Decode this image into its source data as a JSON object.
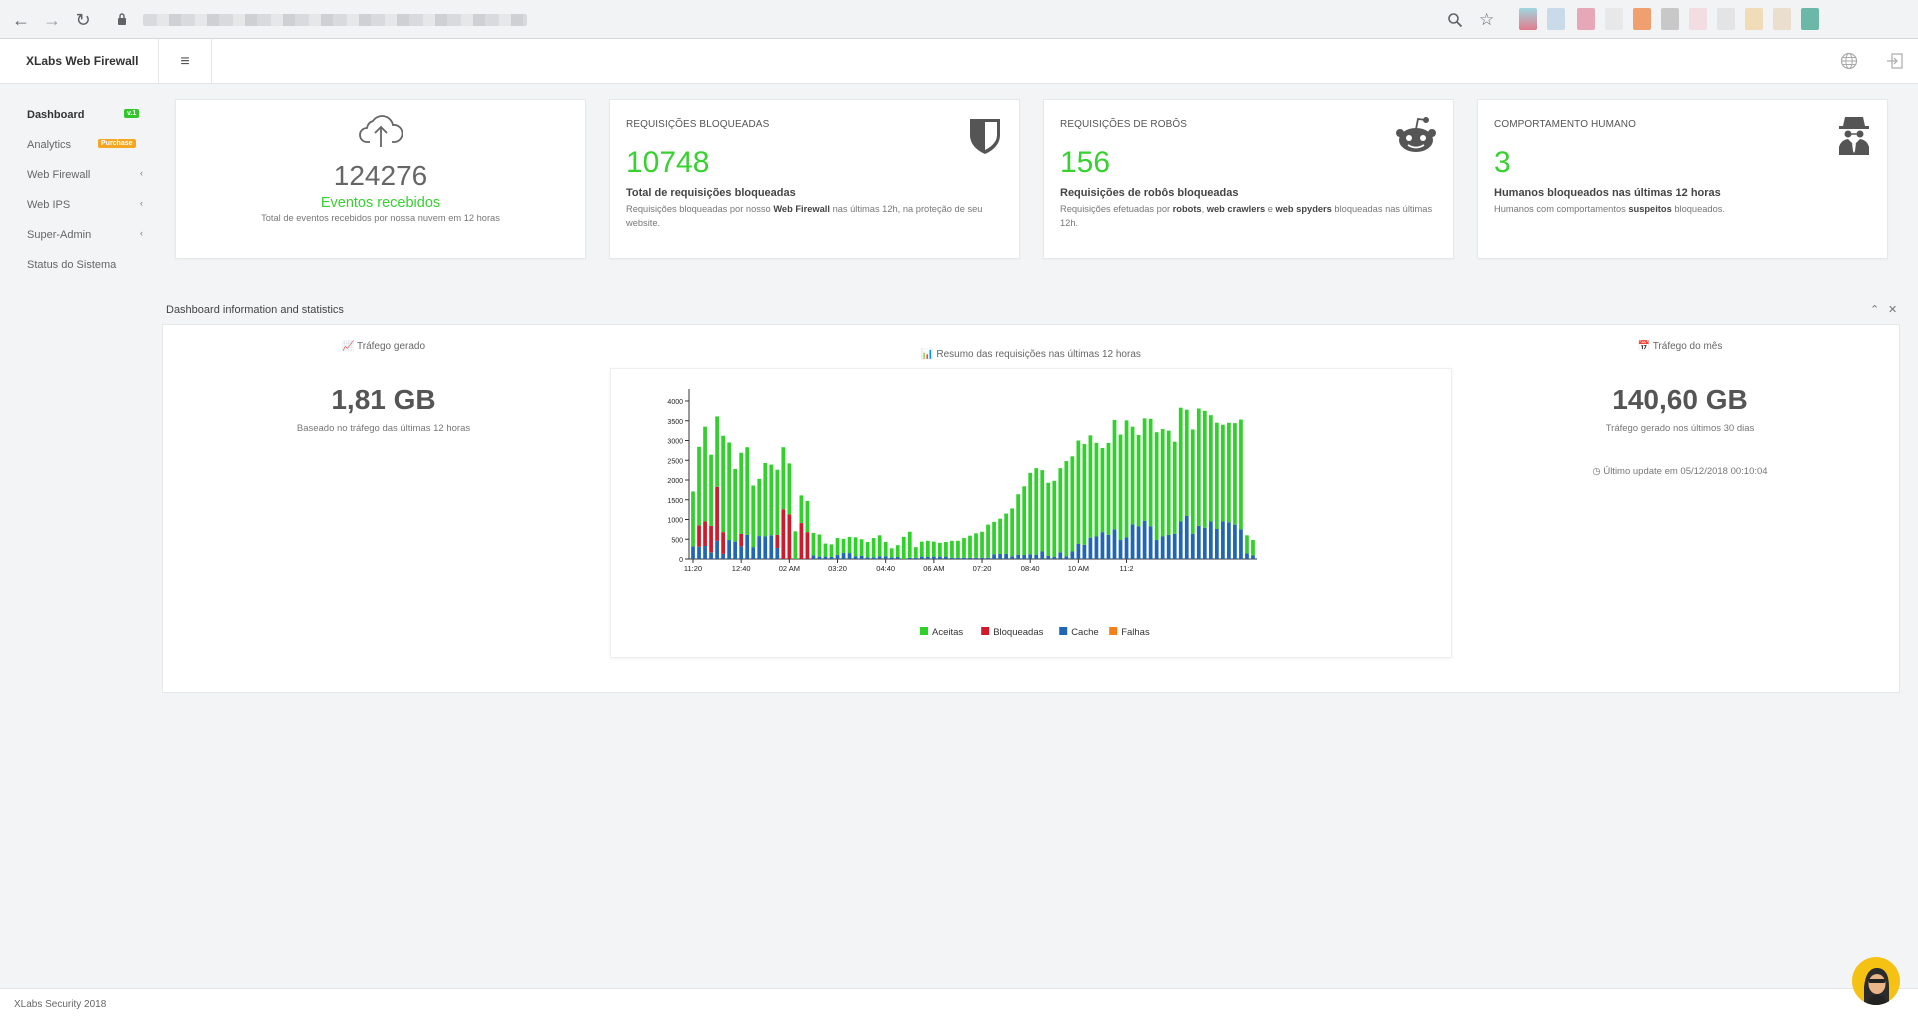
{
  "app": {
    "title": "XLabs Web Firewall"
  },
  "sidebar": {
    "items": [
      {
        "label": "Dashboard",
        "badge": "v.1",
        "badge_color": "#2fc72a",
        "active": true
      },
      {
        "label": "Analytics",
        "badge": "Purchase",
        "badge_color": "#f5a623"
      },
      {
        "label": "Web Firewall",
        "chevron": true
      },
      {
        "label": "Web IPS",
        "chevron": true
      },
      {
        "label": "Super-Admin",
        "chevron": true
      },
      {
        "label": "Status do Sistema"
      }
    ]
  },
  "cards": [
    {
      "value": "124276",
      "title": "Eventos recebidos",
      "desc": "Total de eventos recebidos por nossa nuvem em 12 horas",
      "icon": "cloud-upload-icon"
    },
    {
      "label": "REQUISIÇÕES BLOQUEADAS",
      "value": "10748",
      "subtitle": "Total de requisições bloqueadas",
      "desc_a": "Requisições bloqueadas por nosso ",
      "desc_b": "Web Firewall",
      "desc_c": " nas últimas 12h, na proteção de seu website.",
      "icon": "shield-icon"
    },
    {
      "label": "REQUISIÇÕES DE ROBÔS",
      "value": "156",
      "subtitle": "Requisições de robôs bloqueadas",
      "desc_a": "Requisições efetuadas por ",
      "desc_b": "robots",
      "desc_c": ", ",
      "desc_d": "web crawlers",
      "desc_e": " e ",
      "desc_f": "web spyders",
      "desc_g": " bloqueadas nas últimas 12h.",
      "icon": "robot-icon"
    },
    {
      "label": "COMPORTAMENTO HUMANO",
      "value": "3",
      "subtitle": "Humanos bloqueados nas últimas 12 horas",
      "desc_a": "Humanos com comportamentos ",
      "desc_b": "suspeitos",
      "desc_c": " bloqueados.",
      "icon": "spy-icon"
    }
  ],
  "stats_panel": {
    "title": "Dashboard information and statistics",
    "traffic": {
      "heading": "Tráfego gerado",
      "value": "1,81 GB",
      "sub": "Baseado no tráfego das últimas 12 horas"
    },
    "chart_heading": "Resumo das requisições nas últimas 12 horas",
    "month": {
      "heading": "Tráfego do mês",
      "value": "140,60 GB",
      "sub": "Tráfego gerado nos últimos 30 dias",
      "update": "Último update em 05/12/2018 00:10:04"
    }
  },
  "footer": {
    "text": "XLabs Security 2018"
  },
  "colors": {
    "green": "#37d130",
    "red": "#d0192b",
    "blue": "#1f67b4",
    "orange": "#f57f17"
  },
  "chart_data": {
    "type": "bar",
    "stacked": true,
    "ylim": [
      0,
      4000
    ],
    "yticks": [
      0,
      500,
      1000,
      1500,
      2000,
      2500,
      3000,
      3500,
      4000
    ],
    "xtick_labels": [
      "11:20",
      "12:40",
      "02 AM",
      "03:20",
      "04:40",
      "06 AM",
      "07:20",
      "08:40",
      "10 AM",
      "11:2"
    ],
    "xtick_index": [
      0,
      8,
      16,
      24,
      32,
      40,
      48,
      56,
      64,
      72
    ],
    "legend": [
      "Aceitas",
      "Bloqueadas",
      "Cache",
      "Falhas"
    ],
    "series": [
      {
        "name": "Aceitas",
        "color": "#2fd12a",
        "values": [
          1390,
          1990,
          2400,
          1800,
          1780,
          2440,
          2470,
          1840,
          2050,
          2220,
          1560,
          1450,
          1860,
          1790,
          1650,
          1570,
          1290,
          700,
          700,
          790,
          570,
          560,
          330,
          320,
          430,
          360,
          410,
          480,
          420,
          390,
          490,
          530,
          360,
          230,
          300,
          560,
          660,
          270,
          380,
          410,
          380,
          350,
          370,
          430,
          430,
          500,
          560,
          620,
          660,
          840,
          820,
          890,
          1020,
          1210,
          1530,
          1740,
          2060,
          2190,
          2060,
          1850,
          1930,
          2130,
          2410,
          2410,
          2620,
          2550,
          2590,
          2370,
          2130,
          2330,
          2770,
          2670,
          2960,
          2470,
          2310,
          2590,
          2720,
          2730,
          2720,
          2640,
          2330,
          2880,
          2690,
          2640,
          2970,
          2960,
          2690,
          2690,
          2450,
          2520,
          2570,
          2780,
          460,
          390
        ]
      },
      {
        "name": "Bloqueadas",
        "color": "#d0192b",
        "values": [
          0,
          540,
          620,
          670,
          1370,
          550,
          0,
          0,
          320,
          0,
          0,
          0,
          0,
          0,
          330,
          1260,
          1130,
          0,
          910,
          680,
          0,
          0,
          0,
          0,
          0,
          0,
          0,
          0,
          0,
          0,
          0,
          0,
          0,
          0,
          0,
          0,
          0,
          0,
          0,
          0,
          0,
          0,
          0,
          0,
          0,
          0,
          0,
          0,
          0,
          0,
          0,
          0,
          0,
          0,
          0,
          0,
          0,
          0,
          0,
          0,
          0,
          0,
          0,
          0,
          0,
          0,
          0,
          0,
          0,
          0,
          0,
          0,
          0,
          0,
          0,
          0,
          0,
          0,
          0,
          0,
          0,
          0,
          0,
          0,
          0,
          0,
          0,
          0,
          0,
          0,
          0,
          0,
          0,
          0
        ]
      },
      {
        "name": "Cache",
        "color": "#1f67b4",
        "values": [
          320,
          310,
          330,
          170,
          460,
          130,
          480,
          440,
          320,
          610,
          300,
          580,
          570,
          600,
          280,
          0,
          0,
          0,
          0,
          0,
          90,
          60,
          60,
          50,
          100,
          150,
          150,
          70,
          80,
          40,
          40,
          70,
          70,
          40,
          50,
          0,
          30,
          30,
          60,
          50,
          60,
          60,
          60,
          30,
          30,
          30,
          30,
          30,
          30,
          30,
          120,
          130,
          130,
          70,
          110,
          100,
          120,
          110,
          190,
          80,
          50,
          170,
          70,
          190,
          380,
          360,
          540,
          570,
          680,
          610,
          750,
          480,
          550,
          880,
          830,
          970,
          830,
          480,
          570,
          610,
          640,
          950,
          1090,
          640,
          840,
          790,
          950,
          760,
          950,
          930,
          870,
          750,
          140,
          90
        ]
      },
      {
        "name": "Falhas",
        "color": "#f57f17",
        "values": [
          0,
          0,
          0,
          0,
          0,
          0,
          0,
          0,
          0,
          0,
          0,
          0,
          0,
          0,
          0,
          0,
          0,
          0,
          0,
          0,
          0,
          0,
          0,
          0,
          0,
          0,
          0,
          0,
          0,
          0,
          0,
          0,
          0,
          0,
          0,
          0,
          0,
          0,
          0,
          0,
          0,
          0,
          0,
          0,
          0,
          0,
          0,
          0,
          0,
          0,
          0,
          0,
          0,
          0,
          0,
          0,
          0,
          0,
          0,
          0,
          0,
          0,
          0,
          0,
          0,
          0,
          0,
          0,
          0,
          0,
          0,
          0,
          0,
          0,
          0,
          0,
          0,
          0,
          0,
          0,
          0,
          0,
          0,
          0,
          0,
          0,
          0,
          0,
          0,
          0,
          0,
          0,
          0,
          0
        ]
      }
    ]
  }
}
